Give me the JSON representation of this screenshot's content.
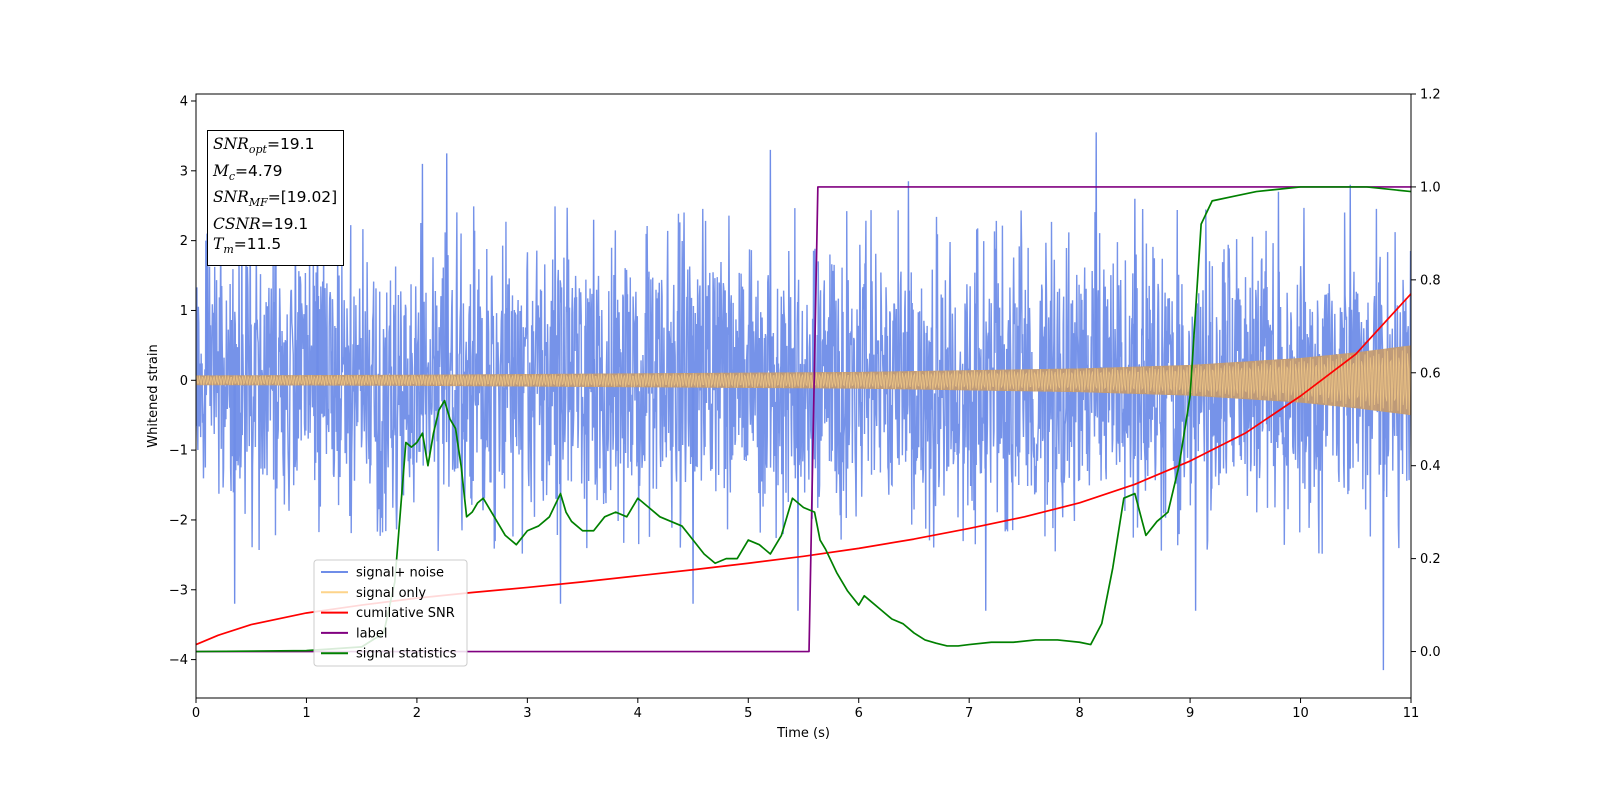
{
  "chart_data": {
    "type": "line",
    "xlabel": "Time (s)",
    "ylabel": "Whitened strain",
    "xlim": [
      0,
      11
    ],
    "ylim_left": [
      -4.55,
      4.1
    ],
    "ylim_right": [
      -0.1,
      1.2
    ],
    "x_ticks": [
      "0",
      "1",
      "2",
      "3",
      "4",
      "5",
      "6",
      "7",
      "8",
      "9",
      "10",
      "11"
    ],
    "y_ticks_left": [
      "−4",
      "−3",
      "−2",
      "−1",
      "0",
      "1",
      "2",
      "3",
      "4"
    ],
    "y_ticks_right": [
      "0.0",
      "0.2",
      "0.4",
      "0.6",
      "0.8",
      "1.0",
      "1.2"
    ],
    "legend": {
      "placement": "lower-left",
      "entries": [
        {
          "name": "signal+ noise",
          "color": "#6f8de8"
        },
        {
          "name": "signal only",
          "color": "#fdd48a"
        },
        {
          "name": "cumilative SNR",
          "color": "#ff0000"
        },
        {
          "name": "label",
          "color": "#800080"
        },
        {
          "name": "signal statistics",
          "color": "#008000"
        }
      ]
    },
    "series": [
      {
        "name": "signal+ noise",
        "axis": "left",
        "color": "#6f8de8",
        "description_envelope": {
          "x": [
            0,
            11
          ],
          "typical_max": 2.0,
          "typical_min": -2.0
        },
        "spikes_x": [
          0.1,
          0.35,
          0.9,
          1.1,
          2.05,
          2.27,
          3.3,
          3.6,
          4.5,
          5.2,
          5.45,
          6.45,
          7.15,
          8.15,
          8.5,
          9.05,
          9.8,
          10.45,
          10.75
        ],
        "spikes_y": [
          2.1,
          -3.2,
          2.3,
          2.4,
          3.1,
          3.25,
          -3.2,
          2.3,
          -3.2,
          3.3,
          -3.3,
          2.85,
          -3.3,
          3.55,
          2.6,
          -3.3,
          2.7,
          2.8,
          -4.15
        ]
      },
      {
        "name": "signal only",
        "axis": "left",
        "color": "#fdd48a",
        "envelope_x": [
          0,
          2,
          4,
          6,
          8,
          9,
          10,
          10.5,
          11
        ],
        "envelope_amp": [
          0.07,
          0.08,
          0.1,
          0.12,
          0.17,
          0.22,
          0.32,
          0.4,
          0.5
        ]
      },
      {
        "name": "cumilative SNR",
        "axis": "right",
        "color": "#ff0000",
        "x": [
          0,
          0.2,
          0.5,
          1,
          1.5,
          2,
          2.5,
          3,
          3.5,
          4,
          4.5,
          5,
          5.5,
          6,
          6.5,
          7,
          7.5,
          8,
          8.5,
          9,
          9.5,
          10,
          10.5,
          11
        ],
        "y": [
          0.015,
          0.035,
          0.058,
          0.083,
          0.1,
          0.115,
          0.127,
          0.138,
          0.15,
          0.163,
          0.176,
          0.19,
          0.205,
          0.222,
          0.242,
          0.265,
          0.29,
          0.32,
          0.36,
          0.41,
          0.47,
          0.55,
          0.64,
          0.77
        ]
      },
      {
        "name": "label",
        "axis": "right",
        "color": "#800080",
        "x": [
          0,
          5.55,
          5.63,
          11
        ],
        "y": [
          0,
          0,
          1,
          1
        ]
      },
      {
        "name": "signal statistics",
        "axis": "right",
        "color": "#008000",
        "x": [
          0,
          1,
          1.5,
          1.7,
          1.8,
          1.85,
          1.9,
          1.95,
          2.0,
          2.05,
          2.1,
          2.15,
          2.2,
          2.25,
          2.3,
          2.35,
          2.4,
          2.45,
          2.5,
          2.55,
          2.6,
          2.7,
          2.8,
          2.9,
          3.0,
          3.1,
          3.2,
          3.3,
          3.35,
          3.4,
          3.5,
          3.6,
          3.7,
          3.8,
          3.9,
          4.0,
          4.1,
          4.2,
          4.3,
          4.4,
          4.5,
          4.6,
          4.7,
          4.8,
          4.9,
          5.0,
          5.1,
          5.2,
          5.3,
          5.4,
          5.5,
          5.6,
          5.65,
          5.7,
          5.8,
          5.9,
          6.0,
          6.05,
          6.1,
          6.2,
          6.3,
          6.4,
          6.5,
          6.6,
          6.7,
          6.8,
          6.9,
          7.0,
          7.2,
          7.4,
          7.6,
          7.8,
          8.0,
          8.1,
          8.2,
          8.3,
          8.4,
          8.5,
          8.6,
          8.7,
          8.8,
          8.9,
          9.0,
          9.1,
          9.2,
          9.4,
          9.6,
          9.8,
          10.0,
          10.3,
          10.6,
          11.0
        ],
        "y": [
          0.0,
          0.002,
          0.01,
          0.04,
          0.15,
          0.3,
          0.45,
          0.44,
          0.45,
          0.47,
          0.4,
          0.47,
          0.52,
          0.54,
          0.5,
          0.48,
          0.4,
          0.29,
          0.3,
          0.32,
          0.33,
          0.29,
          0.25,
          0.23,
          0.26,
          0.27,
          0.29,
          0.34,
          0.3,
          0.28,
          0.26,
          0.26,
          0.29,
          0.3,
          0.29,
          0.33,
          0.31,
          0.29,
          0.28,
          0.27,
          0.24,
          0.21,
          0.19,
          0.2,
          0.2,
          0.24,
          0.23,
          0.21,
          0.25,
          0.33,
          0.31,
          0.3,
          0.24,
          0.22,
          0.17,
          0.13,
          0.1,
          0.12,
          0.11,
          0.09,
          0.07,
          0.06,
          0.04,
          0.025,
          0.018,
          0.012,
          0.012,
          0.015,
          0.02,
          0.02,
          0.025,
          0.025,
          0.02,
          0.015,
          0.06,
          0.18,
          0.33,
          0.34,
          0.25,
          0.28,
          0.3,
          0.4,
          0.55,
          0.92,
          0.97,
          0.98,
          0.99,
          0.995,
          1.0,
          1.0,
          1.0,
          0.99
        ]
      }
    ]
  },
  "annotation": {
    "snr_opt_value": "=19.1",
    "mc_value": "=4.79",
    "snr_mf_value": "=[19.02]",
    "csnr_value": "=19.1",
    "tm_value": "=11.5"
  }
}
